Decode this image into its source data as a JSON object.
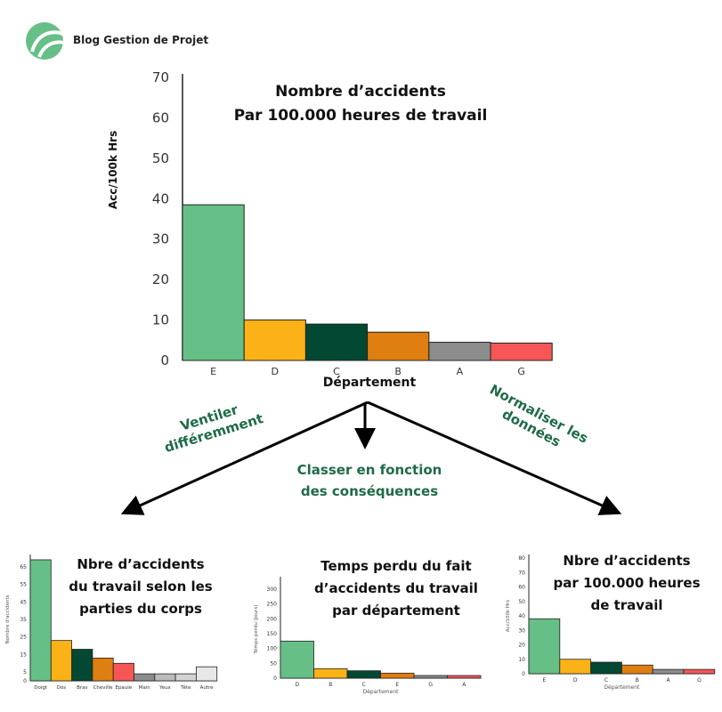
{
  "logo": {
    "text": "Blog Gestion de Projet"
  },
  "main_chart": {
    "title_line1": "Nombre d’accidents",
    "title_line2": "Par 100.000 heures de travail",
    "ylabel": "Acc/100k Hrs",
    "xlabel": "Département",
    "y_ticks": [
      "70",
      "60",
      "50",
      "40",
      "30",
      "20",
      "10",
      "0"
    ]
  },
  "branches": {
    "left": "Ventiler\ndifféremment",
    "center": "Classer en fonction\ndes conséquences",
    "right": "Normaliser les\ndonnées"
  },
  "small_charts": {
    "left_title": "Nbre d’accidents\ndu travail selon les\nparties du corps",
    "center_title": "Temps perdu du fait\nd’accidents du travail\npar département",
    "right_title": "Nbre d’accidents\npar 100.000 heures\nde travail"
  },
  "colors": {
    "green": "#66bf87",
    "yellow": "#fbb216",
    "dark_green": "#034833",
    "orange": "#df7e11",
    "gray": "#8c8c8c",
    "red": "#f65656",
    "light_gray": "#e7e7e7",
    "label_green": "#1f6b47"
  },
  "chart_data": [
    {
      "type": "bar",
      "categories": [
        "E",
        "D",
        "C",
        "B",
        "A",
        "G"
      ],
      "values": [
        38.5,
        10,
        9,
        7,
        4.5,
        4.3
      ],
      "title": "Nombre d’accidents Par 100.000 heures de travail",
      "xlabel": "Département",
      "ylabel": "Acc/100k Hrs",
      "ylim": [
        0,
        70
      ],
      "y_ticks": [
        0,
        10,
        20,
        30,
        40,
        50,
        60,
        70
      ],
      "colors": [
        "#66bf87",
        "#fbb216",
        "#034833",
        "#df7e11",
        "#8c8c8c",
        "#f65656"
      ]
    },
    {
      "type": "bar",
      "categories": [
        "Doigt",
        "Dos",
        "Bras",
        "Cheville",
        "Epaule",
        "Main",
        "Yeux",
        "Tête",
        "Autre"
      ],
      "values": [
        69,
        23,
        18,
        13,
        10,
        4,
        4,
        4,
        8
      ],
      "ylabel": "Nombre d'accidents",
      "ylim": [
        0,
        70
      ],
      "y_ticks": [
        0,
        5,
        15,
        25,
        35,
        45,
        55,
        65
      ],
      "colors": [
        "#66bf87",
        "#fbb216",
        "#034833",
        "#df7e11",
        "#f65656",
        "#8c8c8c",
        "#bcbcbc",
        "#d4d4d4",
        "#e7e7e7"
      ]
    },
    {
      "type": "bar",
      "categories": [
        "D",
        "B",
        "C",
        "E",
        "G",
        "A"
      ],
      "values": [
        125,
        32,
        25,
        17,
        9,
        9
      ],
      "ylabel": "Temps perdu (Jours)",
      "xlabel": "Département",
      "ylim": [
        0,
        330
      ],
      "y_ticks": [
        0,
        50,
        100,
        150,
        200,
        250,
        300
      ],
      "colors": [
        "#66bf87",
        "#fbb216",
        "#034833",
        "#df7e11",
        "#8c8c8c",
        "#f65656"
      ]
    },
    {
      "type": "bar",
      "categories": [
        "E",
        "D",
        "C",
        "B",
        "A",
        "G"
      ],
      "values": [
        38,
        10,
        8,
        6,
        3,
        3
      ],
      "ylabel": "Acc/100k Hrs",
      "xlabel": "Département",
      "ylim": [
        0,
        80
      ],
      "y_ticks": [
        0,
        10,
        20,
        30,
        40,
        50,
        60,
        70,
        80
      ],
      "colors": [
        "#66bf87",
        "#fbb216",
        "#034833",
        "#df7e11",
        "#8c8c8c",
        "#f65656"
      ]
    }
  ]
}
